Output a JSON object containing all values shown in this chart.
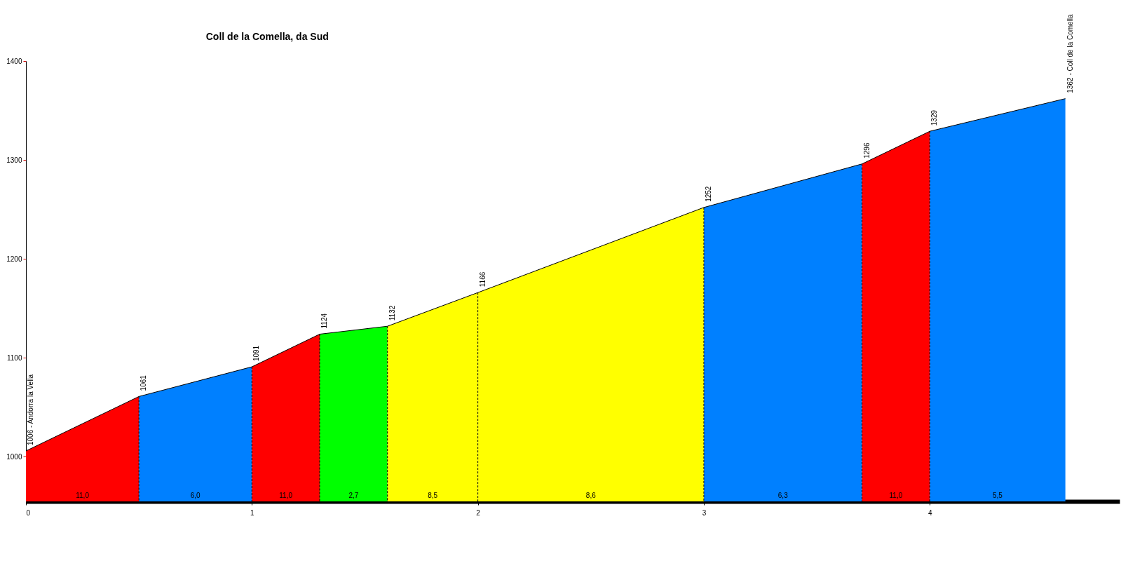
{
  "chart_data": {
    "type": "area",
    "title": "Coll de la Comella, da Sud",
    "xlim": [
      0,
      4.84
    ],
    "xticks": [
      0,
      1,
      2,
      3,
      4
    ],
    "ylim": [
      955,
      1400
    ],
    "yticks": [
      1000,
      1100,
      1200,
      1300,
      1400
    ],
    "series": [
      {
        "color": "#ff0000",
        "x": [
          0,
          0.5
        ],
        "values": [
          1006,
          1061
        ],
        "value_labels": [
          "1006 - Andorra la Vella",
          null
        ]
      },
      {
        "color": "#0080ff",
        "x": [
          0.5,
          1.0
        ],
        "values": [
          1061,
          1091
        ],
        "value_labels": [
          "1061",
          null
        ]
      },
      {
        "color": "#ff0000",
        "x": [
          1.0,
          1.3
        ],
        "values": [
          1091,
          1124
        ],
        "value_labels": [
          "1091",
          null
        ]
      },
      {
        "color": "#00ff00",
        "x": [
          1.3,
          1.6
        ],
        "values": [
          1124,
          1132
        ],
        "value_labels": [
          "1124",
          null
        ]
      },
      {
        "color": "#ffff00",
        "x": [
          1.6,
          2.0
        ],
        "values": [
          1132,
          1166
        ],
        "value_labels": [
          "1132",
          null
        ]
      },
      {
        "color": "#ffff00",
        "x": [
          2.0,
          3.0
        ],
        "values": [
          1166,
          1252
        ],
        "value_labels": [
          "1166",
          null
        ]
      },
      {
        "color": "#0080ff",
        "x": [
          3.0,
          3.7
        ],
        "values": [
          1252,
          1296
        ],
        "value_labels": [
          "1252",
          null
        ]
      },
      {
        "color": "#ff0000",
        "x": [
          3.7,
          4.0
        ],
        "values": [
          1296,
          1329
        ],
        "value_labels": [
          "1296",
          null
        ]
      },
      {
        "color": "#0080ff",
        "x": [
          4.0,
          4.6
        ],
        "values": [
          1329,
          1362
        ],
        "value_labels": [
          "1329",
          "1362 - Coll de la Comella"
        ]
      }
    ],
    "annotations": [
      "11,0",
      "6,0",
      "11,0",
      "2,7",
      "8,5",
      "8,6",
      "6,3",
      "11,0",
      "5,5"
    ]
  }
}
